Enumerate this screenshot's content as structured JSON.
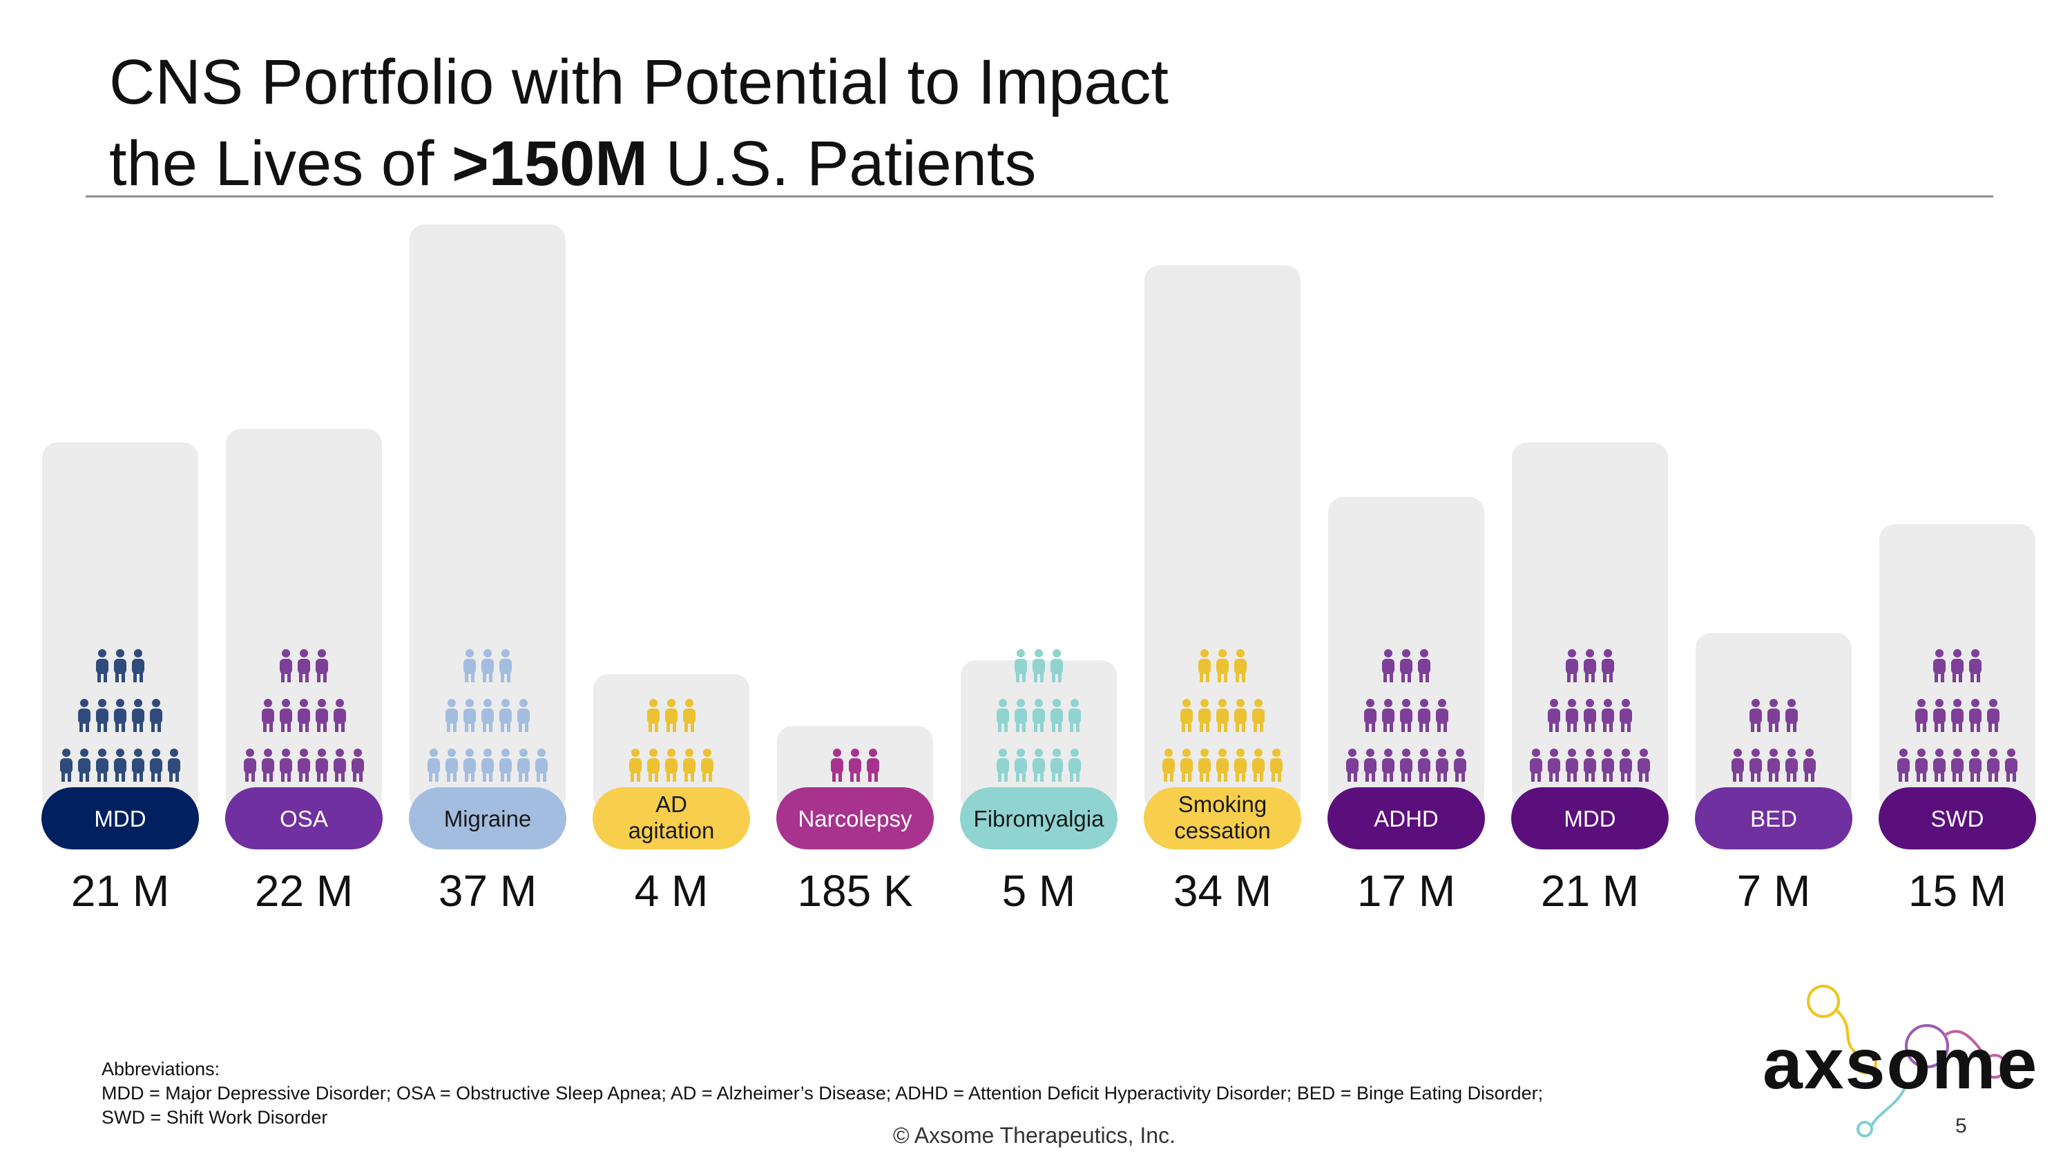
{
  "title": {
    "line1": "CNS Portfolio with Potential to Impact",
    "line2_prefix": "the Lives of ",
    "line2_bold": ">150M",
    "line2_suffix": " U.S. Patients"
  },
  "chart_data": {
    "type": "bar",
    "title": "CNS Portfolio with Potential to Impact the Lives of >150M U.S. Patients",
    "categories": [
      "MDD",
      "OSA",
      "Migraine",
      "AD agitation",
      "Narcolepsy",
      "Fibromyalgia",
      "Smoking cessation",
      "ADHD",
      "MDD",
      "BED",
      "SWD"
    ],
    "category_labels": [
      [
        "MDD"
      ],
      [
        "OSA"
      ],
      [
        "Migraine"
      ],
      [
        "AD",
        "agitation"
      ],
      [
        "Narcolepsy"
      ],
      [
        "Fibromyalgia"
      ],
      [
        "Smoking",
        "cessation"
      ],
      [
        "ADHD"
      ],
      [
        "MDD"
      ],
      [
        "BED"
      ],
      [
        "SWD"
      ]
    ],
    "value_labels": [
      "21 M",
      "22 M",
      "37 M",
      "4 M",
      "185 K",
      "5 M",
      "34 M",
      "17 M",
      "21 M",
      "7 M",
      "15 M"
    ],
    "values_millions": [
      21,
      22,
      37,
      4,
      0.185,
      5,
      34,
      17,
      21,
      7,
      15
    ],
    "people_rows": [
      [
        3,
        5,
        7
      ],
      [
        3,
        5,
        7
      ],
      [
        3,
        5,
        7
      ],
      [
        3,
        5
      ],
      [
        3
      ],
      [
        3,
        5,
        5
      ],
      [
        3,
        5,
        7
      ],
      [
        3,
        5,
        7
      ],
      [
        3,
        5,
        7
      ],
      [
        3,
        5
      ],
      [
        3,
        5,
        7
      ]
    ],
    "colors": [
      "#002060",
      "#7030a0",
      "#a3bde0",
      "#f7cf4d",
      "#a8338e",
      "#8fd4d1",
      "#f7cf4d",
      "#5b0f7d",
      "#5b0f7d",
      "#7030a0",
      "#5b0f7d"
    ],
    "icon_colors": [
      "#2f4b7c",
      "#7d3f98",
      "#a3bde0",
      "#ecc233",
      "#a8338e",
      "#8fd4d1",
      "#ecc233",
      "#7d3f98",
      "#7d3f98",
      "#7d3f98",
      "#7d3f98"
    ],
    "label_text_colors": [
      "#ffffff",
      "#ffffff",
      "#1a1a1a",
      "#1a1a1a",
      "#ffffff",
      "#1a1a1a",
      "#1a1a1a",
      "#ffffff",
      "#ffffff",
      "#ffffff",
      "#ffffff"
    ],
    "background_color": "#ececec",
    "legend": "none",
    "grid": false
  },
  "abbreviations": {
    "heading": "Abbreviations:",
    "line1": "MDD = Major Depressive Disorder; OSA = Obstructive Sleep Apnea; AD = Alzheimer’s Disease; ADHD = Attention Deficit Hyperactivity Disorder; BED = Binge Eating Disorder;",
    "line2": "SWD = Shift Work Disorder"
  },
  "footer": {
    "copyright": "© Axsome Therapeutics, Inc.",
    "page_number": "5"
  },
  "logo": {
    "text": "axsome",
    "icon": "molecule-icon",
    "colors": [
      "#f0c419",
      "#9b59b6",
      "#7fcfcf"
    ]
  }
}
